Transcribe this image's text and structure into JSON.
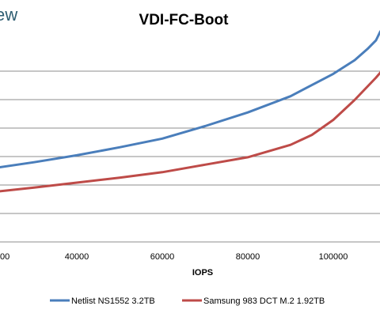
{
  "brand": {
    "text": "ew"
  },
  "chart_data": {
    "type": "line",
    "title": "VDI-FC-Boot",
    "xlabel": "IOPS",
    "ylabel": "",
    "xlim": [
      20000,
      115000
    ],
    "x_ticks": [
      40000,
      60000,
      80000,
      100000
    ],
    "x_tick_labels": [
      "40000",
      "60000",
      "80000",
      "100000"
    ],
    "x_partial_tick_label": "00",
    "y_gridlines": 6,
    "ylim": [
      0,
      8
    ],
    "grid": true,
    "legend": "bottom",
    "series": [
      {
        "name": "Netlist NS1552 3.2TB",
        "color": "#4a7ebb",
        "x": [
          20000,
          30000,
          40000,
          50000,
          60000,
          70000,
          80000,
          90000,
          100000,
          105000,
          108000,
          110000,
          111000
        ],
        "y": [
          2.95,
          3.2,
          3.48,
          3.8,
          4.15,
          4.65,
          5.2,
          5.85,
          6.75,
          7.3,
          7.75,
          8.1,
          8.45
        ]
      },
      {
        "name": "Samsung 983 DCT M.2 1.92TB",
        "color": "#be4b48",
        "x": [
          20000,
          30000,
          40000,
          50000,
          60000,
          70000,
          80000,
          90000,
          95000,
          100000,
          105000,
          110000,
          115000
        ],
        "y": [
          2.0,
          2.18,
          2.38,
          2.58,
          2.8,
          3.1,
          3.4,
          3.9,
          4.3,
          4.9,
          5.7,
          6.6,
          7.6
        ]
      }
    ]
  }
}
